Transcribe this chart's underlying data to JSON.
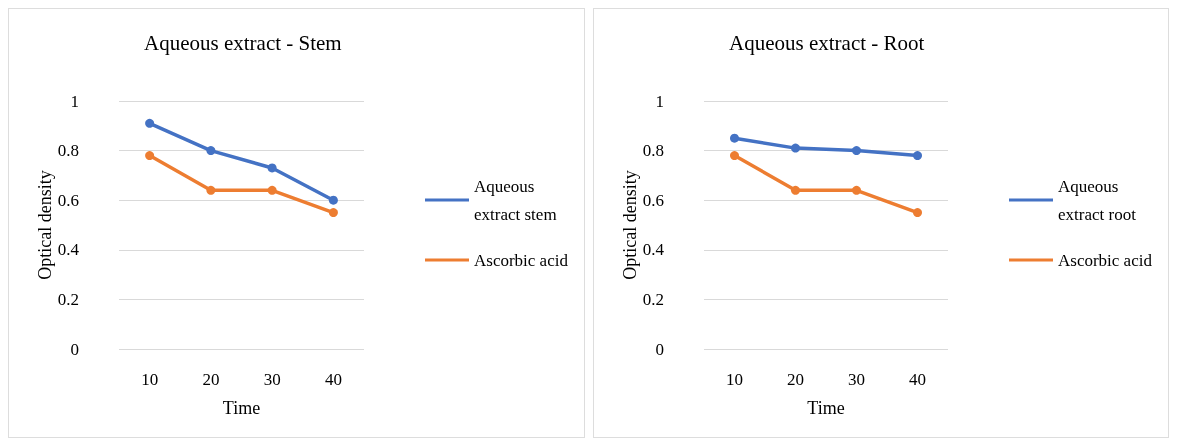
{
  "chart_data": [
    {
      "type": "line",
      "title": "Aqueous extract - Stem",
      "xlabel": "Time",
      "ylabel": "Optical density",
      "categories": [
        "10",
        "20",
        "30",
        "40"
      ],
      "series": [
        {
          "name": "Aqueous extract stem",
          "color": "#4472c4",
          "values": [
            0.91,
            0.8,
            0.73,
            0.6
          ]
        },
        {
          "name": "Ascorbic acid",
          "color": "#ed7d31",
          "values": [
            0.78,
            0.64,
            0.64,
            0.55
          ]
        }
      ],
      "ylim": [
        0,
        1
      ],
      "yticks": [
        0,
        0.2,
        0.4,
        0.6,
        0.8,
        1
      ],
      "grid": "y",
      "legend": "right",
      "marker": "circle"
    },
    {
      "type": "line",
      "title": "Aqueous extract - Root",
      "xlabel": "Time",
      "ylabel": "Optical density",
      "categories": [
        "10",
        "20",
        "30",
        "40"
      ],
      "series": [
        {
          "name": "Aqueous extract root",
          "color": "#4472c4",
          "values": [
            0.85,
            0.81,
            0.8,
            0.78
          ]
        },
        {
          "name": "Ascorbic acid",
          "color": "#ed7d31",
          "values": [
            0.78,
            0.64,
            0.64,
            0.55
          ]
        }
      ],
      "ylim": [
        0,
        1
      ],
      "yticks": [
        0,
        0.2,
        0.4,
        0.6,
        0.8,
        1
      ],
      "grid": "y",
      "legend": "right",
      "marker": "circle"
    }
  ]
}
